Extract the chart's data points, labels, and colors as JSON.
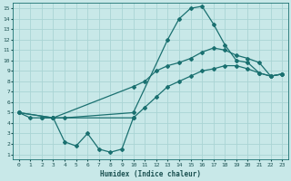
{
  "xlabel": "Humidex (Indice chaleur)",
  "bg_color": "#c8e8e8",
  "grid_color": "#aad4d4",
  "line_color": "#1a7070",
  "xlim": [
    -0.5,
    23.5
  ],
  "ylim": [
    0.5,
    15.5
  ],
  "xticks": [
    0,
    1,
    2,
    3,
    4,
    5,
    6,
    7,
    8,
    9,
    10,
    11,
    12,
    13,
    14,
    15,
    16,
    17,
    18,
    19,
    20,
    21,
    22,
    23
  ],
  "yticks": [
    1,
    2,
    3,
    4,
    5,
    6,
    7,
    8,
    9,
    10,
    11,
    12,
    13,
    14,
    15
  ],
  "line1_x": [
    0,
    1,
    2,
    3,
    4,
    10,
    13,
    14,
    15,
    16,
    17,
    18,
    19,
    20,
    21,
    22,
    23
  ],
  "line1_y": [
    5,
    4.5,
    4.5,
    4.5,
    4.5,
    5.0,
    12.0,
    14.0,
    15.0,
    15.2,
    13.5,
    11.5,
    10.0,
    9.8,
    8.8,
    8.5,
    8.7
  ],
  "line2_x": [
    0,
    3,
    10,
    11,
    12,
    13,
    14,
    15,
    16,
    17,
    18,
    19,
    20,
    21,
    22,
    23
  ],
  "line2_y": [
    5,
    4.5,
    7.5,
    8.0,
    9.0,
    9.5,
    9.8,
    10.2,
    10.8,
    11.2,
    11.0,
    10.5,
    10.2,
    9.8,
    8.5,
    8.7
  ],
  "line3_x": [
    0,
    3,
    10,
    11,
    12,
    13,
    14,
    15,
    16,
    17,
    18,
    19,
    20,
    21,
    22,
    23
  ],
  "line3_y": [
    5,
    4.5,
    4.5,
    5.5,
    6.5,
    7.5,
    8.0,
    8.5,
    9.0,
    9.2,
    9.5,
    9.5,
    9.2,
    8.8,
    8.5,
    8.7
  ],
  "line4_x": [
    2,
    3,
    4,
    5,
    6,
    7,
    8,
    9,
    10
  ],
  "line4_y": [
    4.5,
    4.5,
    2.2,
    1.8,
    3.0,
    1.5,
    1.2,
    1.5,
    4.5
  ]
}
